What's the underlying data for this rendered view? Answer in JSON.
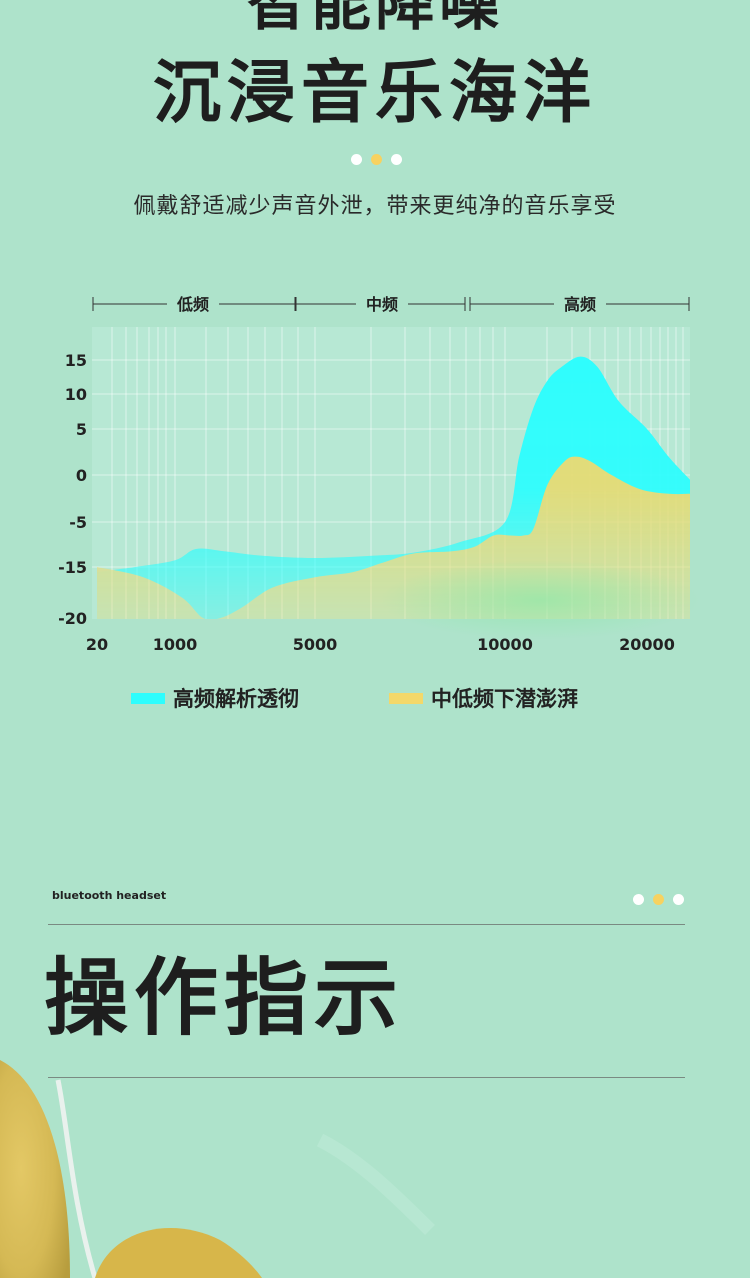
{
  "header": {
    "title_line1": "智能降噪",
    "title_line2": "沉浸音乐海洋",
    "subtitle": "佩戴舒适减少声音外泄，带来更纯净的音乐享受"
  },
  "chart_data": {
    "type": "area",
    "bands": [
      "低频",
      "中频",
      "高频"
    ],
    "y_ticks": [
      "15",
      "10",
      "5",
      "0",
      "-5",
      "-15",
      "-20"
    ],
    "x_ticks": [
      "20",
      "1000",
      "5000",
      "10000",
      "20000"
    ],
    "series": [
      {
        "name": "高频解析透彻",
        "color": "#2efdfd",
        "points": [
          [
            20,
            -15.5
          ],
          [
            500,
            -15
          ],
          [
            1000,
            -13.5
          ],
          [
            1600,
            -11
          ],
          [
            2400,
            -11.5
          ],
          [
            3500,
            -12.5
          ],
          [
            5000,
            -13
          ],
          [
            6500,
            -12.5
          ],
          [
            7600,
            -11.8
          ],
          [
            8800,
            -9.5
          ],
          [
            10000,
            -5
          ],
          [
            11000,
            2
          ],
          [
            12000,
            8
          ],
          [
            13000,
            12
          ],
          [
            14000,
            14
          ],
          [
            15300,
            15.5
          ],
          [
            16500,
            14
          ],
          [
            18000,
            9
          ],
          [
            20000,
            5
          ],
          [
            21500,
            2
          ],
          [
            23000,
            -0.5
          ]
        ]
      },
      {
        "name": "中低频下潜澎湃",
        "color": "#f3d86a",
        "points": [
          [
            20,
            -15
          ],
          [
            600,
            -16
          ],
          [
            1200,
            -18
          ],
          [
            1800,
            -20
          ],
          [
            2300,
            -20.5
          ],
          [
            2900,
            -19
          ],
          [
            3800,
            -17
          ],
          [
            5000,
            -16
          ],
          [
            6000,
            -15.5
          ],
          [
            6800,
            -14
          ],
          [
            7600,
            -12
          ],
          [
            8600,
            -11.5
          ],
          [
            9200,
            -10.5
          ],
          [
            9700,
            -8
          ],
          [
            10400,
            -8
          ],
          [
            11300,
            -8
          ],
          [
            12000,
            -6.5
          ],
          [
            13000,
            -1
          ],
          [
            14200,
            1.5
          ],
          [
            15000,
            2
          ],
          [
            16000,
            1.5
          ],
          [
            17500,
            0
          ],
          [
            19500,
            -1.5
          ],
          [
            21500,
            -2
          ],
          [
            23000,
            -2
          ]
        ]
      }
    ],
    "grid": true
  },
  "section": {
    "brand": "bluetooth headset",
    "title": "操作指示"
  },
  "colors": {
    "background": "#aee3cb",
    "accent": "#f7d260"
  }
}
